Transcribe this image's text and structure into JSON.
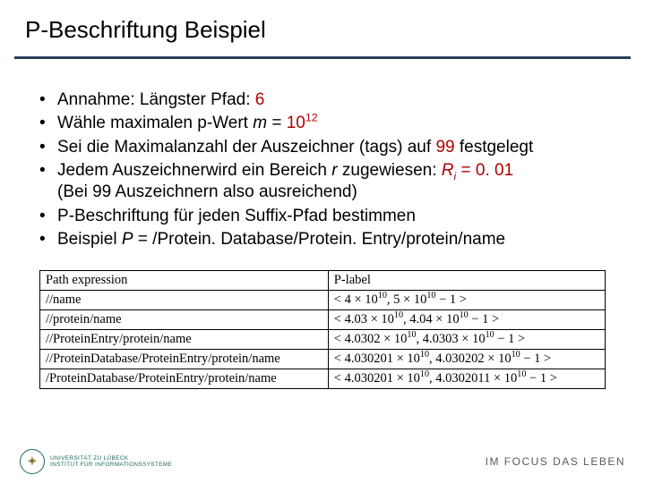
{
  "title": "P-Beschriftung Beispiel",
  "bullets": {
    "b1_pre": "Annahme: Längster Pfad: ",
    "b1_num": "6",
    "b2_pre": "Wähle maximalen p-Wert ",
    "b2_var": "m",
    "b2_eq": " = ",
    "b2_base": "10",
    "b2_exp": "12",
    "b3_pre": "Sei die Maximalanzahl der Auszeichner (tags) auf ",
    "b3_num": "99",
    "b3_post": " festgelegt",
    "b4_pre": "Jedem Auszeichnerwird ein Bereich ",
    "b4_var_r": "r",
    "b4_mid": " zugewiesen: ",
    "b4_Ri": "R",
    "b4_i": "i",
    "b4_eq": " = ",
    "b4_val": "0. 01",
    "b4_paren": "(Bei 99 Auszeichnern also ausreichend)",
    "b5": "P-Beschriftung für jeden Suffix-Pfad bestimmen",
    "b6_pre": "Beispiel ",
    "b6_P": "P",
    "b6_rest": " = /Protein. Database/Protein. Entry/protein/name"
  },
  "table": {
    "h1": "Path expression",
    "h2": "P-label",
    "rows": [
      {
        "path": "//name",
        "label_html": "&lt; 4 × 10<span class='exp'>10</span>, 5 × 10<span class='exp'>10</span> − 1 &gt;"
      },
      {
        "path": "//protein/name",
        "label_html": "&lt; 4.03 × 10<span class='exp'>10</span>, 4.04 × 10<span class='exp'>10</span> − 1 &gt;"
      },
      {
        "path": "//ProteinEntry/protein/name",
        "label_html": "&lt; 4.0302 × 10<span class='exp'>10</span>, 4.0303 × 10<span class='exp'>10</span> − 1 &gt;"
      },
      {
        "path": "//ProteinDatabase/ProteinEntry/protein/name",
        "label_html": "&lt; 4.030201 × 10<span class='exp'>10</span>, 4.030202 × 10<span class='exp'>10</span> − 1 &gt;"
      },
      {
        "path": "/ProteinDatabase/ProteinEntry/protein/name",
        "label_html": "&lt; 4.030201 × 10<span class='exp'>10</span>, 4.0302011 × 10<span class='exp'>10</span> − 1 &gt;"
      }
    ]
  },
  "footer": {
    "uni_line1": "UNIVERSITÄT ZU LÜBECK",
    "uni_line2": "INSTITUT FÜR INFORMATIONSSYSTEME",
    "tagline": "IM FOCUS DAS LEBEN"
  },
  "colors": {
    "rule": "#2a3d57",
    "highlight": "#b00000",
    "logo_green": "#1f6b5e"
  }
}
